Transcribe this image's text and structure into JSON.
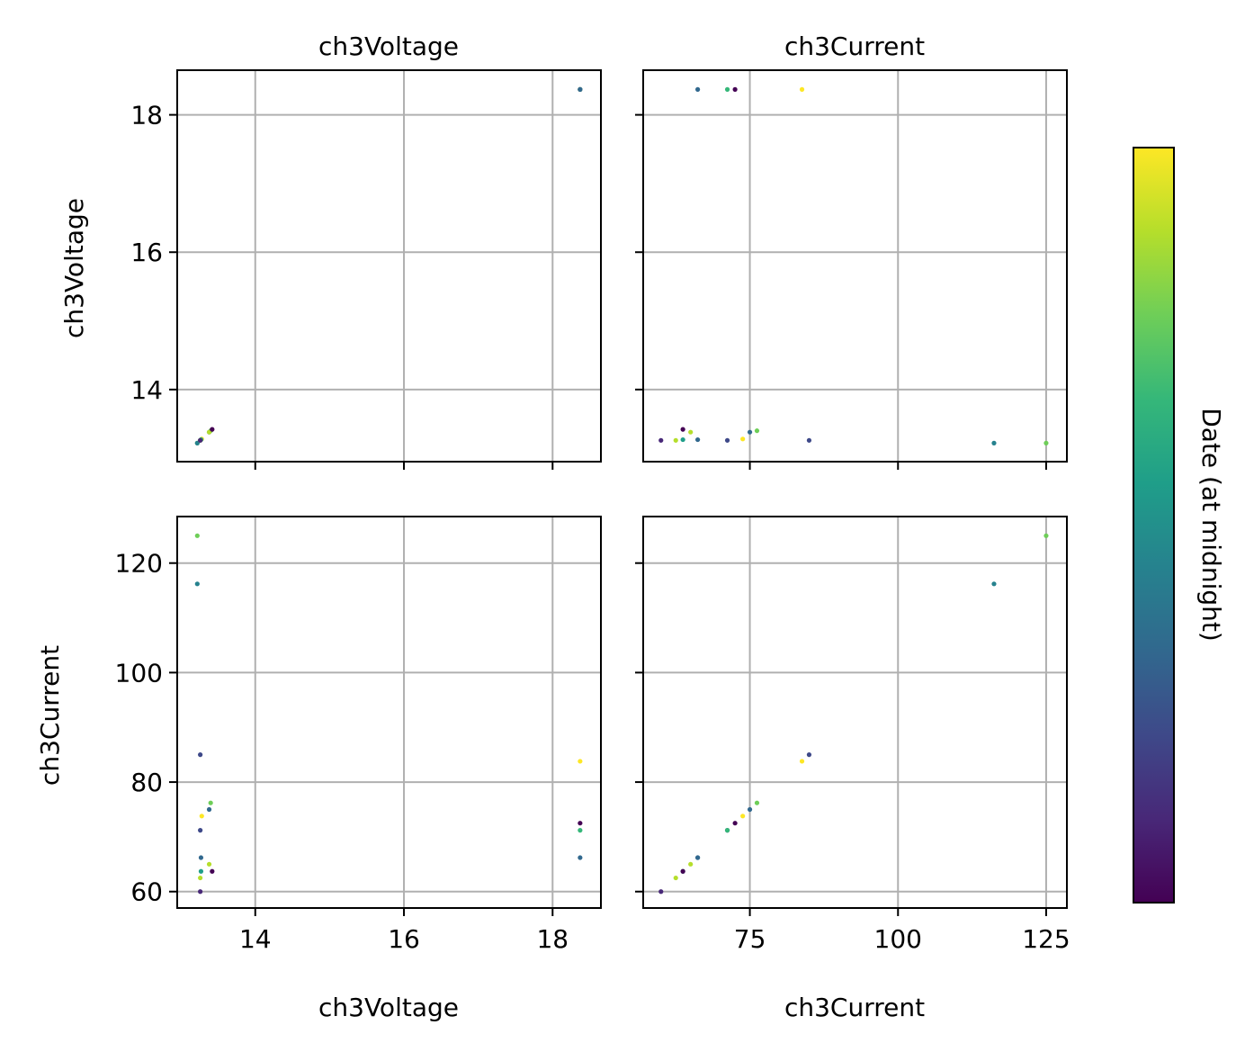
{
  "chart_data": {
    "type": "scatter",
    "kind": "pair-plot scatter matrix",
    "variables": [
      "ch3Voltage",
      "ch3Current"
    ],
    "panel_titles": [
      "ch3Voltage",
      "ch3Current"
    ],
    "row_labels": [
      "ch3Voltage",
      "ch3Current"
    ],
    "xlabels": [
      "ch3Voltage",
      "ch3Current"
    ],
    "grid": true,
    "ranges": {
      "ch3Voltage": [
        12.95,
        18.65
      ],
      "ch3Current": [
        57.0,
        128.5
      ]
    },
    "ticks": {
      "ch3Voltage": [
        14,
        16,
        18
      ],
      "ch3Current": [
        60,
        80,
        100,
        120
      ],
      "ch3Current_x": [
        75,
        100,
        125
      ]
    },
    "tick_labels": {
      "ch3Voltage": [
        "14",
        "16",
        "18"
      ],
      "ch3Current": [
        "60",
        "80",
        "100",
        "120"
      ],
      "ch3Current_x": [
        "75",
        "100",
        "125"
      ]
    },
    "colorbar": {
      "label": "Date (at midnight)",
      "colormap": "viridis",
      "colors": [
        "#440154",
        "#482878",
        "#3e4989",
        "#31688e",
        "#26828e",
        "#1f9e89",
        "#35b779",
        "#6ece58",
        "#b5de2b",
        "#fde725"
      ]
    },
    "points": [
      {
        "ch3Voltage": 13.22,
        "ch3Current": 125.0,
        "color": "#6ece58"
      },
      {
        "ch3Voltage": 13.22,
        "ch3Current": 116.2,
        "color": "#26828e"
      },
      {
        "ch3Voltage": 13.26,
        "ch3Current": 85.0,
        "color": "#3e4989"
      },
      {
        "ch3Voltage": 13.26,
        "ch3Current": 71.2,
        "color": "#3e4989"
      },
      {
        "ch3Voltage": 13.28,
        "ch3Current": 73.8,
        "color": "#fde725"
      },
      {
        "ch3Voltage": 13.27,
        "ch3Current": 66.2,
        "color": "#31688e"
      },
      {
        "ch3Voltage": 13.27,
        "ch3Current": 63.7,
        "color": "#1f9e89"
      },
      {
        "ch3Voltage": 13.26,
        "ch3Current": 62.5,
        "color": "#b5de2b"
      },
      {
        "ch3Voltage": 13.26,
        "ch3Current": 60.0,
        "color": "#482878"
      },
      {
        "ch3Voltage": 13.4,
        "ch3Current": 76.2,
        "color": "#6ece58"
      },
      {
        "ch3Voltage": 13.38,
        "ch3Current": 75.0,
        "color": "#31688e"
      },
      {
        "ch3Voltage": 13.38,
        "ch3Current": 65.0,
        "color": "#b5de2b"
      },
      {
        "ch3Voltage": 13.42,
        "ch3Current": 63.7,
        "color": "#440154"
      },
      {
        "ch3Voltage": 18.37,
        "ch3Current": 83.8,
        "color": "#fde725"
      },
      {
        "ch3Voltage": 18.37,
        "ch3Current": 72.5,
        "color": "#440154"
      },
      {
        "ch3Voltage": 18.37,
        "ch3Current": 71.2,
        "color": "#35b779"
      },
      {
        "ch3Voltage": 18.37,
        "ch3Current": 66.2,
        "color": "#31688e"
      }
    ]
  }
}
